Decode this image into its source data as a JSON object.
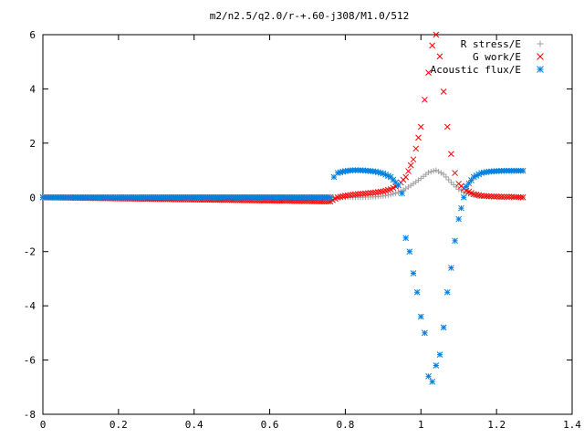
{
  "chart_data": {
    "type": "scatter",
    "title": "m2/n2.5/q2.0/r-+.60-j308/M1.0/512",
    "xlabel": "",
    "ylabel": "",
    "xlim": [
      0,
      1.4
    ],
    "ylim": [
      -8,
      6
    ],
    "x_ticks": [
      "0",
      "0.2",
      "0.4",
      "0.6",
      "0.8",
      "1",
      "1.2",
      "1.4"
    ],
    "y_ticks": [
      "-8",
      "-6",
      "-4",
      "-2",
      "0",
      "2",
      "4",
      "6"
    ],
    "grid": false,
    "legend_position": "top-right",
    "series": [
      {
        "name": "R stress/E",
        "marker": "plus",
        "color": "#a0a0a0",
        "x": [
          0.0,
          0.78,
          0.8,
          0.82,
          0.84,
          0.86,
          0.88,
          0.9,
          0.92,
          0.94,
          0.96,
          0.98,
          1.0,
          1.02,
          1.04,
          1.06,
          1.08,
          1.1,
          1.12,
          1.15,
          1.18,
          1.21,
          1.24,
          1.27
        ],
        "y": [
          0.0,
          0.0,
          0.0,
          0.0,
          0.0,
          0.01,
          0.02,
          0.05,
          0.1,
          0.18,
          0.32,
          0.5,
          0.7,
          0.92,
          1.0,
          0.85,
          0.55,
          0.3,
          0.15,
          0.06,
          0.03,
          0.01,
          0.0,
          0.0
        ]
      },
      {
        "name": "G work/E",
        "marker": "cross",
        "color": "#ff0000",
        "x": [
          0.0,
          0.76,
          0.78,
          0.8,
          0.82,
          0.84,
          0.86,
          0.88,
          0.9,
          0.92,
          0.94,
          0.96,
          0.98,
          1.0,
          1.01,
          1.02,
          1.03,
          1.04,
          1.05,
          1.06,
          1.07,
          1.08,
          1.09,
          1.1,
          1.12,
          1.14,
          1.16,
          1.18,
          1.2,
          1.22,
          1.24,
          1.27
        ],
        "y": [
          0.0,
          -0.15,
          0.0,
          0.06,
          0.1,
          0.13,
          0.15,
          0.18,
          0.22,
          0.3,
          0.45,
          0.75,
          1.4,
          2.6,
          3.6,
          4.6,
          5.6,
          6.0,
          5.2,
          3.9,
          2.6,
          1.6,
          0.9,
          0.5,
          0.25,
          0.12,
          0.06,
          0.04,
          0.03,
          0.02,
          0.02,
          0.0
        ]
      },
      {
        "name": "Acoustic flux/E",
        "marker": "star",
        "color": "#0080e0",
        "x": [
          0.0,
          0.76,
          0.77,
          0.78,
          0.8,
          0.82,
          0.84,
          0.86,
          0.88,
          0.9,
          0.92,
          0.94,
          0.95,
          0.96,
          0.97,
          0.98,
          0.99,
          1.0,
          1.01,
          1.02,
          1.03,
          1.04,
          1.05,
          1.06,
          1.07,
          1.08,
          1.09,
          1.1,
          1.12,
          1.14,
          1.16,
          1.18,
          1.2,
          1.22,
          1.24,
          1.27
        ],
        "y": [
          0.0,
          0.0,
          0.75,
          0.9,
          0.97,
          1.0,
          1.0,
          0.98,
          0.95,
          0.88,
          0.75,
          0.45,
          0.15,
          -1.5,
          -2.0,
          -2.8,
          -3.5,
          -4.4,
          -5.0,
          -6.6,
          -6.8,
          -6.2,
          -5.8,
          -4.8,
          -3.5,
          -2.6,
          -1.6,
          -0.8,
          0.4,
          0.75,
          0.9,
          0.95,
          0.97,
          0.98,
          0.98,
          0.98
        ]
      }
    ]
  }
}
